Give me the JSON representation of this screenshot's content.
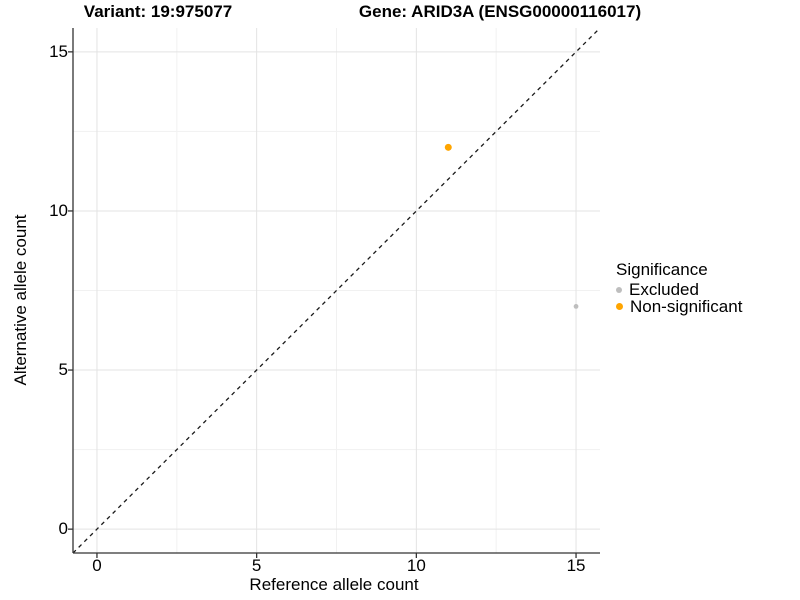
{
  "titles": {
    "variant": "Variant: 19:975077",
    "gene": "Gene: ARID3A (ENSG00000116017)"
  },
  "axes": {
    "x_label": "Reference allele count",
    "y_label": "Alternative allele count"
  },
  "legend": {
    "title": "Significance",
    "entries": [
      {
        "label": "Excluded",
        "color": "#BEBEBE",
        "dot_size": 6
      },
      {
        "label": "Non-significant",
        "color": "#FFA500",
        "dot_size": 7
      }
    ]
  },
  "colors": {
    "background": "#ffffff",
    "axis_line": "#333333",
    "major_grid": "#E3E3E3",
    "minor_grid": "#F1F1F1",
    "identity_line": "#1a1a1a",
    "excluded_point": "#BEBEBE",
    "non_significant_point": "#FFA500"
  },
  "chart_data": {
    "type": "scatter",
    "title": "Variant: 19:975077   Gene: ARID3A (ENSG00000116017)",
    "xlabel": "Reference allele count",
    "ylabel": "Alternative allele count",
    "xlim": [
      -0.75,
      15.75
    ],
    "ylim": [
      -0.75,
      15.75
    ],
    "x_ticks": [
      0,
      5,
      10,
      15
    ],
    "y_ticks": [
      0,
      5,
      10,
      15
    ],
    "x_minor_ticks": [
      2.5,
      7.5,
      12.5
    ],
    "y_minor_ticks": [
      2.5,
      7.5,
      12.5
    ],
    "grid": true,
    "legend_position": "right",
    "identity_line": {
      "style": "dashed",
      "equation": "y = x",
      "color": "#1a1a1a"
    },
    "series": [
      {
        "name": "Excluded",
        "color": "#BEBEBE",
        "point_radius": 2.4,
        "points": [
          {
            "x": 15,
            "y": 7
          }
        ]
      },
      {
        "name": "Non-significant",
        "color": "#FFA500",
        "point_radius": 3.5,
        "points": [
          {
            "x": 11,
            "y": 12
          }
        ]
      }
    ]
  }
}
